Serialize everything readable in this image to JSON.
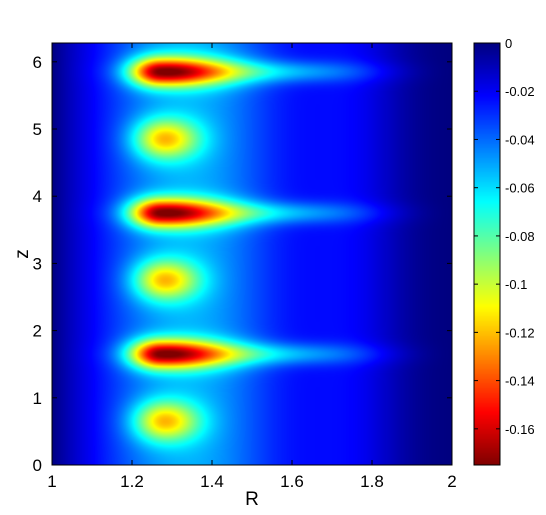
{
  "chart_data": {
    "type": "heatmap",
    "title": "",
    "xlabel": "R",
    "ylabel": "z",
    "xlim": [
      1,
      2
    ],
    "ylim": [
      0,
      6.28
    ],
    "x_ticks": [
      "1",
      "1.2",
      "1.4",
      "1.6",
      "1.8",
      "2"
    ],
    "y_ticks": [
      "0",
      "1",
      "2",
      "3",
      "4",
      "5",
      "6"
    ],
    "colormap": "jet",
    "colorbar": {
      "range": [
        -0.175,
        0
      ],
      "ticks": [
        "0",
        "-0.02",
        "-0.04",
        "-0.06",
        "-0.08",
        "-0.1",
        "-0.12",
        "-0.14",
        "-0.16"
      ]
    },
    "peaks": [
      {
        "R": 1.28,
        "z": 0.65,
        "value": -0.125
      },
      {
        "R": 1.27,
        "z": 1.65,
        "value": -0.172
      },
      {
        "R": 1.28,
        "z": 2.75,
        "value": -0.125
      },
      {
        "R": 1.27,
        "z": 3.75,
        "value": -0.172
      },
      {
        "R": 1.28,
        "z": 4.85,
        "value": -0.125
      },
      {
        "R": 1.27,
        "z": 5.85,
        "value": -0.172
      }
    ]
  }
}
